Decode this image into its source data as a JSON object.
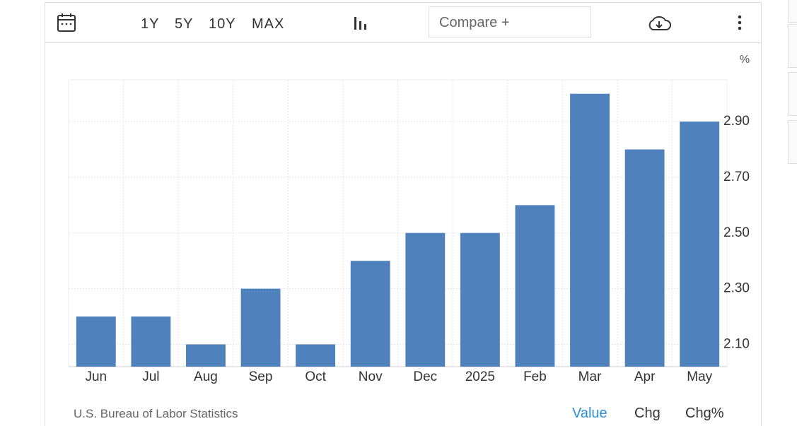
{
  "toolbar": {
    "ranges": [
      "1Y",
      "5Y",
      "10Y",
      "MAX"
    ],
    "compare": "Compare +"
  },
  "chart_data": {
    "type": "bar",
    "unit": "%",
    "categories": [
      "Jun",
      "Jul",
      "Aug",
      "Sep",
      "Oct",
      "Nov",
      "Dec",
      "2025",
      "Feb",
      "Mar",
      "Apr",
      "May"
    ],
    "values": [
      2.2,
      2.2,
      2.1,
      2.3,
      2.1,
      2.4,
      2.5,
      2.5,
      2.6,
      3.0,
      2.8,
      2.9
    ],
    "color": "#4f81bd",
    "ylim": [
      2.02,
      3.05
    ],
    "yticks": [
      {
        "value": 2.1,
        "label": "2.10"
      },
      {
        "value": 2.3,
        "label": "2.30"
      },
      {
        "value": 2.5,
        "label": "2.50"
      },
      {
        "value": 2.7,
        "label": "2.70"
      },
      {
        "value": 2.9,
        "label": "2.90"
      }
    ],
    "grid": true
  },
  "footer": {
    "source": "U.S. Bureau of Labor Statistics",
    "tabs": [
      "Value",
      "Chg",
      "Chg%"
    ]
  }
}
